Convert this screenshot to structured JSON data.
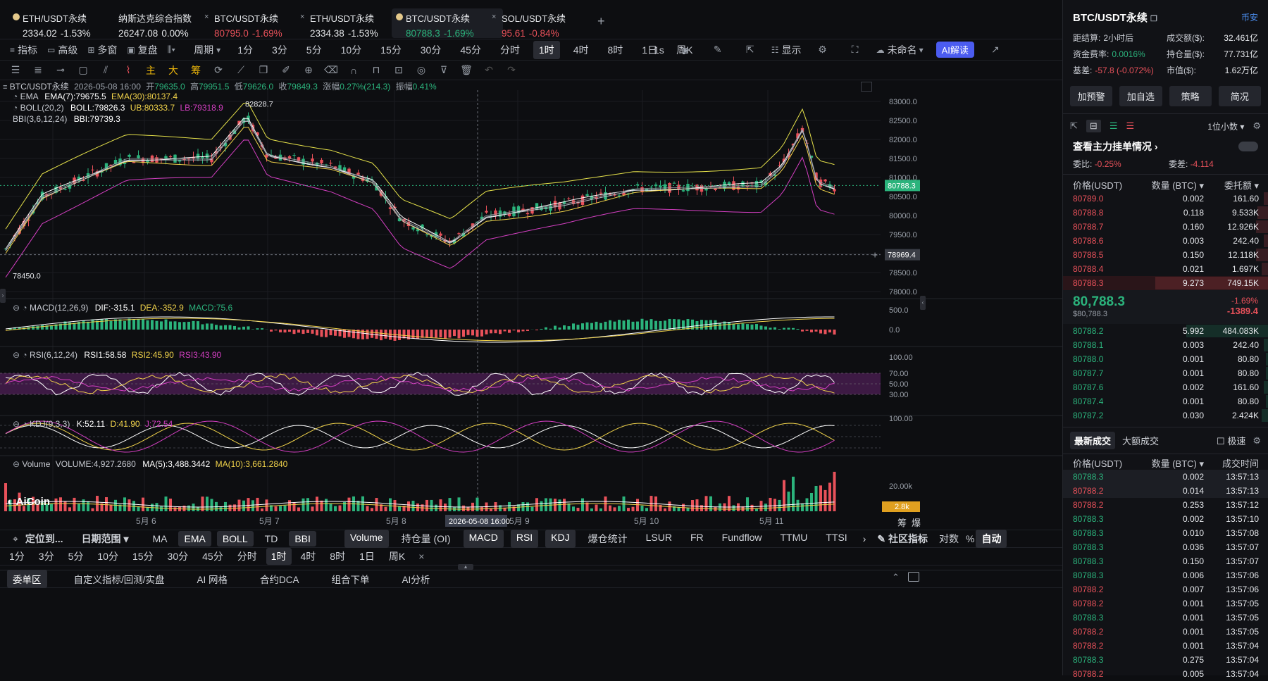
{
  "tabs": [
    {
      "title": "ETH/USDT永续",
      "price": "2334.02",
      "change": "-1.53%",
      "icon": "dot-icon",
      "chg_color": "#e3e5e8"
    },
    {
      "title": "纳斯达克综合指数",
      "price": "26247.08",
      "change": "0.00%",
      "icon": "none",
      "chg_color": "#e3e5e8"
    },
    {
      "title": "BTC/USDT永续",
      "price": "80795.0",
      "change": "-1.69%",
      "icon": "close-icon",
      "chg_color": "#e8515a"
    },
    {
      "title": "ETH/USDT永续",
      "price": "2334.38",
      "change": "-1.53%",
      "icon": "close-icon",
      "chg_color": "#e3e5e8"
    },
    {
      "title": "BTC/USDT永续",
      "price": "80788.3",
      "change": "-1.69%",
      "icon": "dot-icon",
      "chg_color": "#2bb37c",
      "active": true
    },
    {
      "title": "SOL/USDT永续",
      "price": "95.61",
      "change": "-0.84%",
      "icon": "close-icon",
      "chg_color": "#e8515a"
    }
  ],
  "toolbar1": {
    "left": [
      "指标",
      "高级",
      "多窗",
      "复盘"
    ],
    "period_label": "周期",
    "periods": [
      "1分",
      "3分",
      "5分",
      "10分",
      "15分",
      "30分",
      "45分",
      "分时",
      "1时",
      "4时",
      "8时",
      "1日",
      "周K"
    ],
    "active_period": "1时",
    "right": [
      "1s",
      "显示",
      "未命名",
      "AI解读"
    ]
  },
  "toolbar2": {
    "draw_labels": [
      "主",
      "大",
      "筹"
    ]
  },
  "chart": {
    "header": {
      "symbol": "BTC/USDT永续",
      "date": "2026-05-08 16:00",
      "open_l": "开",
      "open": "79635.0",
      "high_l": "高",
      "high": "79951.5",
      "low_l": "低",
      "low": "79626.0",
      "close_l": "收",
      "close": "79849.3",
      "chg_l": "涨幅",
      "chg": "0.27%(214.3)",
      "amp_l": "振幅",
      "amp": "0.41%"
    },
    "ema": {
      "name": "EMA",
      "ema7": "EMA(7):79675.5",
      "ema30": "EMA(30):80137.4"
    },
    "boll": {
      "name": "BOLL(20,2)",
      "boll": "BOLL:79826.3",
      "ub": "UB:80333.7",
      "lb": "LB:79318.9"
    },
    "bbi": {
      "name": "BBI(3,6,12,24)",
      "bbi": "BBI:79739.3"
    },
    "high_mark": "82828.7",
    "low_mark": "78450.0",
    "price_ticks": [
      "83000.0",
      "82500.0",
      "82000.0",
      "81500.0",
      "81000.0",
      "80500.0",
      "80000.0",
      "79500.0",
      "79000.0",
      "78500.0",
      "78000.0"
    ],
    "current_price": "80788.3",
    "cursor_price": "78969.4",
    "macd": {
      "name": "MACD(12,26,9)",
      "dif": "DIF:-315.1",
      "dea": "DEA:-352.9",
      "macd": "MACD:75.6",
      "ticks": [
        "500.0",
        "0.0"
      ]
    },
    "rsi": {
      "name": "RSI(6,12,24)",
      "r1": "RSI1:58.58",
      "r2": "RSI2:45.90",
      "r3": "RSI3:43.90",
      "ticks": [
        "100.00",
        "70.00",
        "50.00",
        "30.00"
      ]
    },
    "kdj": {
      "name": "KDJ(9,3,3)",
      "k": "K:52.11",
      "d": "D:41.90",
      "j": "J:72.54",
      "ticks": [
        "100.00"
      ]
    },
    "volume": {
      "name": "Volume",
      "vol": "VOLUME:4,927.2680",
      "ma5": "MA(5):3,488.3442",
      "ma10": "MA(10):3,661.2840",
      "ticks": [
        "20.00k"
      ],
      "current": "2.8k"
    },
    "x_labels": [
      "5月 6",
      "5月 7",
      "5月 8",
      "5月 9",
      "5月 10",
      "5月 11"
    ],
    "cursor_date": "2026-05-08 16:00",
    "logo": "AiCoin",
    "corner": [
      "筹",
      "爆"
    ]
  },
  "bottom_bar1": {
    "locate": "定位到...",
    "range": "日期范围",
    "main_inds": [
      "MA",
      "EMA",
      "BOLL",
      "TD",
      "BBI"
    ],
    "main_on": [
      "EMA",
      "BOLL",
      "BBI"
    ],
    "sub_inds": [
      "Volume",
      "持仓量 (OI)",
      "MACD",
      "RSI",
      "KDJ",
      "爆仓统计",
      "LSUR",
      "FR",
      "Fundflow",
      "TTMU",
      "TTSI"
    ],
    "sub_on": [
      "Volume",
      "MACD",
      "RSI",
      "KDJ"
    ],
    "community": "社区指标",
    "log": "对数",
    "pct": "%",
    "auto": "自动"
  },
  "bottom_bar2": {
    "periods": [
      "1分",
      "3分",
      "5分",
      "10分",
      "15分",
      "30分",
      "45分",
      "分时",
      "1时",
      "4时",
      "8时",
      "1日",
      "周K"
    ],
    "active": "1时"
  },
  "footer_tabs": [
    "委单区",
    "自定义指标/回测/实盘",
    "AI 网格",
    "合约DCA",
    "组合下单",
    "AI分析"
  ],
  "right": {
    "title": "BTC/USDT永续",
    "exchange": "币安",
    "stats": [
      {
        "l": "距结算:",
        "v": "2小时后",
        "l2": "成交额($):",
        "v2": "32.461亿"
      },
      {
        "l": "资金费率:",
        "v": "0.0016%",
        "l2": "持仓量($):",
        "v2": "77.731亿"
      },
      {
        "l": "基差:",
        "v": "-57.8 (-0.072%)",
        "l2": "市值($):",
        "v2": "1.62万亿"
      }
    ],
    "buttons": [
      "加预警",
      "加自选",
      "策略",
      "简况"
    ],
    "decimals": "1位小数",
    "main_orders": "查看主力挂单情况",
    "ratio_l": "委比:",
    "ratio": "-0.25%",
    "diff_l": "委差:",
    "diff": "-4.114",
    "ob_headers": [
      "价格(USDT)",
      "数量 (BTC)",
      "委托额"
    ],
    "asks": [
      {
        "p": "80789.0",
        "q": "0.002",
        "t": "161.60",
        "w": 0.02
      },
      {
        "p": "80788.8",
        "q": "0.118",
        "t": "9.533K",
        "w": 0.05
      },
      {
        "p": "80788.7",
        "q": "0.160",
        "t": "12.926K",
        "w": 0.06
      },
      {
        "p": "80788.6",
        "q": "0.003",
        "t": "242.40",
        "w": 0.02
      },
      {
        "p": "80788.5",
        "q": "0.150",
        "t": "12.118K",
        "w": 0.06
      },
      {
        "p": "80788.4",
        "q": "0.021",
        "t": "1.697K",
        "w": 0.03
      },
      {
        "p": "80788.3",
        "q": "9.273",
        "t": "749.15K",
        "w": 0.55
      }
    ],
    "last_price": "80,788.3",
    "last_usd": "$80,788.3",
    "last_pct": "-1.69%",
    "last_chg": "-1389.4",
    "bids": [
      {
        "p": "80788.2",
        "q": "5.992",
        "t": "484.083K",
        "w": 0.4
      },
      {
        "p": "80788.1",
        "q": "0.003",
        "t": "242.40",
        "w": 0.02
      },
      {
        "p": "80788.0",
        "q": "0.001",
        "t": "80.80",
        "w": 0.01
      },
      {
        "p": "80787.7",
        "q": "0.001",
        "t": "80.80",
        "w": 0.01
      },
      {
        "p": "80787.6",
        "q": "0.002",
        "t": "161.60",
        "w": 0.02
      },
      {
        "p": "80787.4",
        "q": "0.001",
        "t": "80.80",
        "w": 0.01
      },
      {
        "p": "80787.2",
        "q": "0.030",
        "t": "2.424K",
        "w": 0.03
      }
    ],
    "trade_tabs": [
      "最新成交",
      "大额成交",
      "极速"
    ],
    "trade_headers": [
      "价格(USDT)",
      "数量 (BTC)",
      "成交时间"
    ],
    "trades": [
      {
        "p": "80788.3",
        "q": "0.002",
        "t": "13:57:13",
        "s": "b"
      },
      {
        "p": "80788.2",
        "q": "0.014",
        "t": "13:57:13",
        "s": "s"
      },
      {
        "p": "80788.2",
        "q": "0.253",
        "t": "13:57:12",
        "s": "s"
      },
      {
        "p": "80788.3",
        "q": "0.002",
        "t": "13:57:10",
        "s": "b"
      },
      {
        "p": "80788.3",
        "q": "0.010",
        "t": "13:57:08",
        "s": "b"
      },
      {
        "p": "80788.3",
        "q": "0.036",
        "t": "13:57:07",
        "s": "b"
      },
      {
        "p": "80788.3",
        "q": "0.150",
        "t": "13:57:07",
        "s": "b"
      },
      {
        "p": "80788.3",
        "q": "0.006",
        "t": "13:57:06",
        "s": "b"
      },
      {
        "p": "80788.2",
        "q": "0.007",
        "t": "13:57:06",
        "s": "s"
      },
      {
        "p": "80788.2",
        "q": "0.001",
        "t": "13:57:05",
        "s": "s"
      },
      {
        "p": "80788.3",
        "q": "0.001",
        "t": "13:57:05",
        "s": "b"
      },
      {
        "p": "80788.2",
        "q": "0.001",
        "t": "13:57:05",
        "s": "s"
      },
      {
        "p": "80788.2",
        "q": "0.001",
        "t": "13:57:04",
        "s": "s"
      },
      {
        "p": "80788.3",
        "q": "0.275",
        "t": "13:57:04",
        "s": "b"
      },
      {
        "p": "80788.2",
        "q": "0.005",
        "t": "13:57:04",
        "s": "s"
      }
    ]
  },
  "colors": {
    "up": "#2bb37c",
    "down": "#e8515a",
    "accent": "#4b5cf0",
    "ema7": "#ffffff",
    "ema30": "#f0d24a",
    "boll_ub": "#e6e24a",
    "boll_lb": "#d43fc2"
  }
}
